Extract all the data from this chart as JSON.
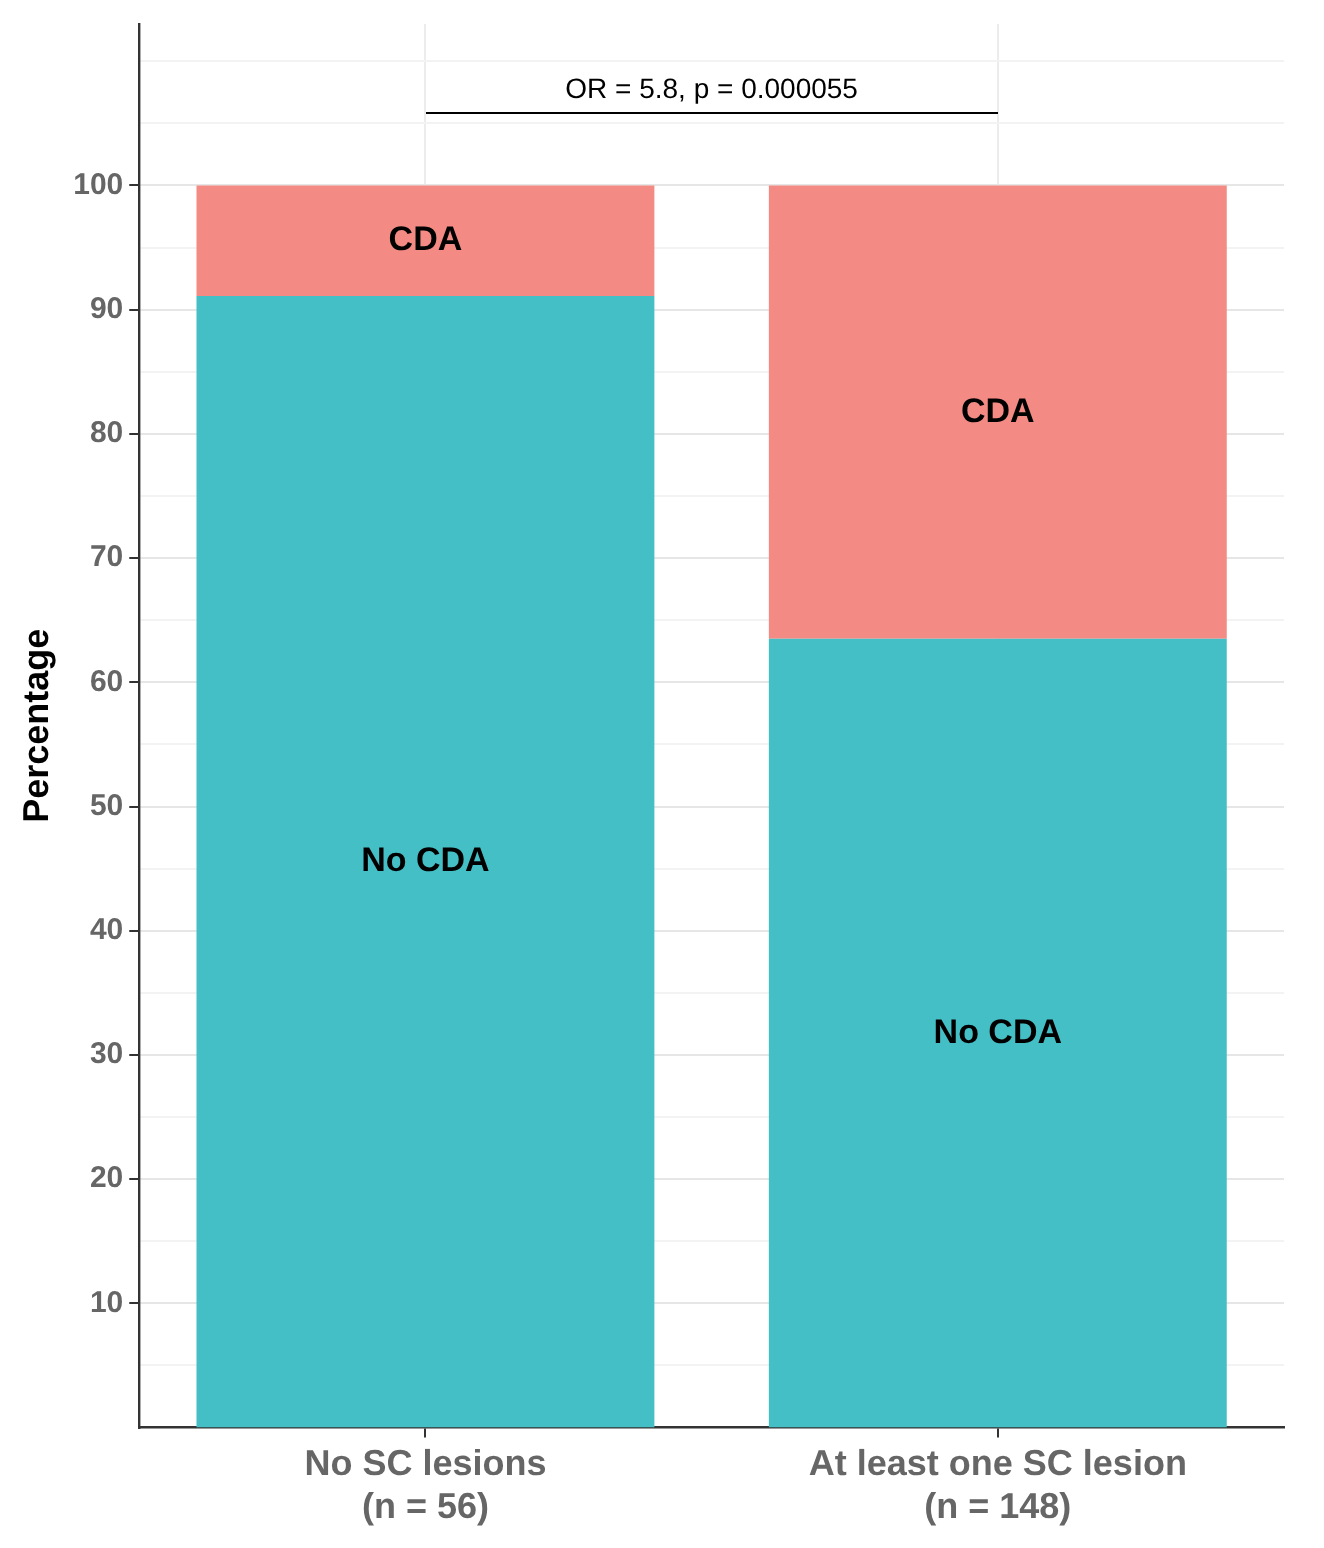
{
  "chart_data": {
    "type": "bar",
    "stacked": true,
    "ylabel": "Percentage",
    "categories": [
      "No SC lesions\n(n = 56)",
      "At least one SC lesion\n(n = 148)"
    ],
    "series": [
      {
        "name": "No CDA",
        "color": "#45bfc6",
        "values": [
          91.1,
          63.5
        ]
      },
      {
        "name": "CDA",
        "color": "#f38b84",
        "values": [
          8.9,
          36.5
        ]
      }
    ],
    "ylim": [
      0,
      113
    ],
    "yticks": [
      {
        "value": 5,
        "label": null
      },
      10,
      {
        "value": 15,
        "label": null
      },
      20,
      {
        "value": 25,
        "label": null
      },
      30,
      {
        "value": 35,
        "label": null
      },
      40,
      {
        "value": 45,
        "label": null
      },
      50,
      {
        "value": 55,
        "label": null
      },
      60,
      {
        "value": 65,
        "label": null
      },
      70,
      {
        "value": 75,
        "label": null
      },
      80,
      {
        "value": 85,
        "label": null
      },
      90,
      {
        "value": 95,
        "label": null
      },
      100,
      {
        "value": 105,
        "label": null
      },
      {
        "value": 110,
        "label": null
      }
    ],
    "grid": true,
    "legend": false,
    "annotations": [
      "OR = 5.8, p = 0.000055"
    ]
  }
}
